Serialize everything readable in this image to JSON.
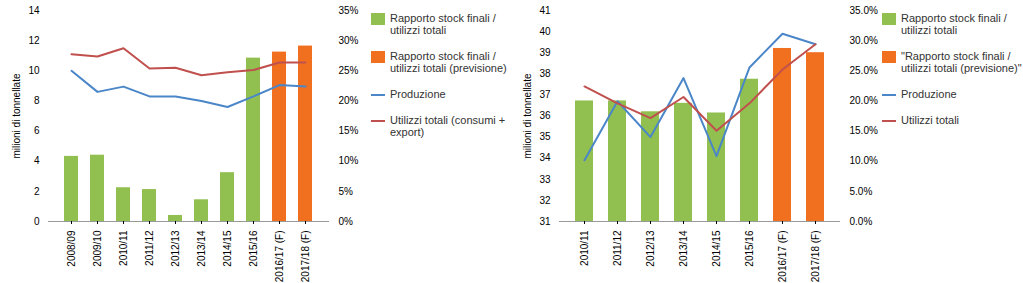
{
  "chart_data": [
    {
      "type": "bar",
      "ylabel": "milioni di tonnellate",
      "categories": [
        "2008/09",
        "2009/10",
        "2010/11",
        "2011/12",
        "2012/13",
        "2013/14",
        "2014/15",
        "2015/16",
        "2016/17 (F)",
        "2017/18 (F)"
      ],
      "ylim": [
        0,
        14
      ],
      "yticks": [
        0,
        2,
        4,
        6,
        8,
        10,
        12,
        14
      ],
      "y2lim": [
        0,
        35
      ],
      "y2ticks": [
        {
          "value": 0,
          "label": "0%"
        },
        {
          "value": 5,
          "label": "5%"
        },
        {
          "value": 10,
          "label": "10%"
        },
        {
          "value": 15,
          "label": "15%"
        },
        {
          "value": 20,
          "label": "20%"
        },
        {
          "value": 25,
          "label": "25%"
        },
        {
          "value": 30,
          "label": "30%"
        },
        {
          "value": 35,
          "label": "35%"
        }
      ],
      "series": [
        {
          "name": "Rapporto stock finali / utilizzi totali",
          "type": "bar",
          "axis": "y2",
          "color": "#92c050",
          "values": [
            10.8,
            11.0,
            5.6,
            5.3,
            1.0,
            3.6,
            8.1,
            27.1,
            null,
            null
          ]
        },
        {
          "name": "Rapporto stock finali / utilizzi totali (previsione)",
          "type": "bar",
          "axis": "y2",
          "color": "#f07020",
          "values": [
            null,
            null,
            null,
            null,
            null,
            null,
            null,
            null,
            28.1,
            29.1
          ]
        },
        {
          "name": "Produzione",
          "type": "line",
          "color": "#4a86c8",
          "values": [
            10.0,
            8.6,
            8.95,
            8.3,
            8.3,
            8.0,
            7.6,
            8.3,
            9.05,
            8.95
          ]
        },
        {
          "name": "Utilizzi totali (consumi + export)",
          "type": "line",
          "color": "#c0504d",
          "values": [
            11.1,
            10.95,
            11.5,
            10.15,
            10.2,
            9.7,
            9.9,
            10.05,
            10.55,
            10.55
          ]
        }
      ]
    },
    {
      "type": "bar",
      "ylabel": "milioni di tonnellate",
      "categories": [
        "2010/11",
        "2011/12",
        "2012/13",
        "2013/14",
        "2014/15",
        "2015/16",
        "2016/17 (F)",
        "2017/18 (F)"
      ],
      "ylim": [
        31,
        41
      ],
      "yticks": [
        31,
        32,
        33,
        34,
        35,
        36,
        37,
        38,
        39,
        40,
        41
      ],
      "y2lim": [
        0,
        35
      ],
      "y2ticks": [
        {
          "value": 0,
          "label": "0.0%"
        },
        {
          "value": 5,
          "label": "5.0%"
        },
        {
          "value": 10,
          "label": "10.0%"
        },
        {
          "value": 15,
          "label": "15.0%"
        },
        {
          "value": 20,
          "label": "20.0%"
        },
        {
          "value": 25,
          "label": "25.0%"
        },
        {
          "value": 30,
          "label": "30.0%"
        },
        {
          "value": 35,
          "label": "35.0%"
        }
      ],
      "series": [
        {
          "name": "Rapporto stock finali / utilizzi totali",
          "type": "bar",
          "axis": "y2",
          "color": "#92c050",
          "values": [
            20.0,
            20.0,
            18.2,
            19.6,
            18.0,
            23.6,
            null,
            null
          ]
        },
        {
          "name": "\"Rapporto stock finali / utilizzi totali (previsione)\"",
          "type": "bar",
          "axis": "y2",
          "color": "#f07020",
          "values": [
            null,
            null,
            null,
            null,
            null,
            null,
            28.7,
            28.0
          ]
        },
        {
          "name": "Produzione",
          "type": "line",
          "color": "#4a86c8",
          "values": [
            33.9,
            36.7,
            35.0,
            37.8,
            34.1,
            38.3,
            39.9,
            39.4
          ]
        },
        {
          "name": "Utilizzi totali",
          "type": "line",
          "color": "#c0504d",
          "values": [
            37.4,
            36.6,
            35.9,
            36.9,
            35.3,
            36.6,
            38.2,
            39.4
          ]
        }
      ]
    }
  ]
}
